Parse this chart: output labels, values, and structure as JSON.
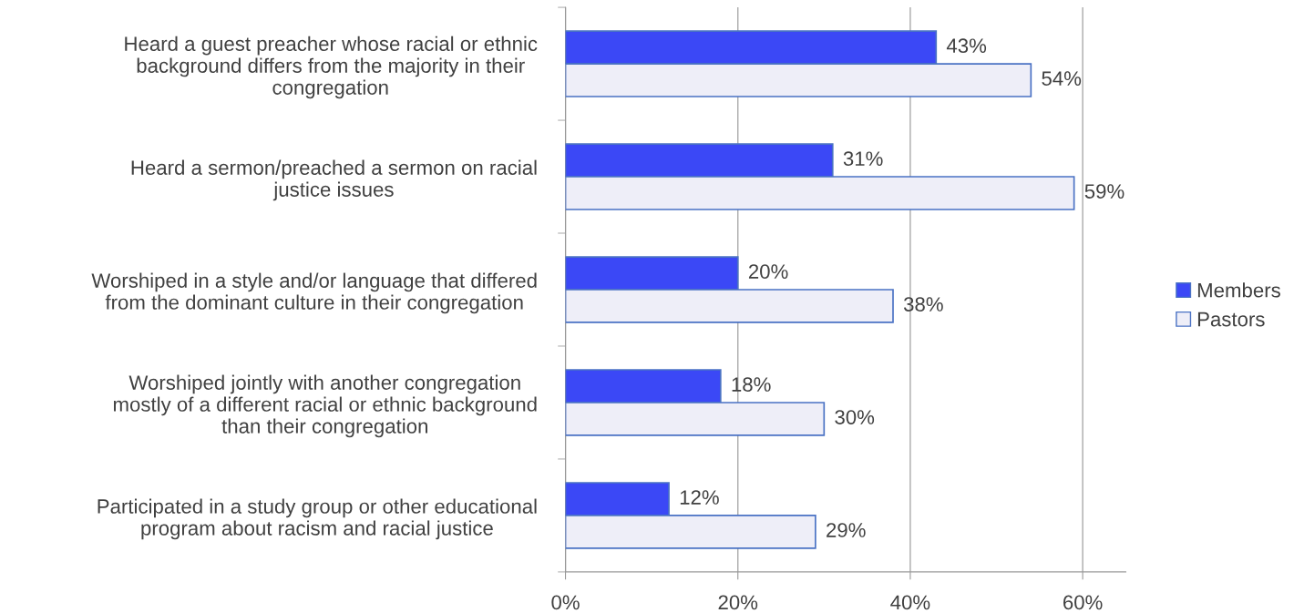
{
  "chart_data": {
    "type": "bar",
    "orientation": "horizontal",
    "categories": [
      "Heard a guest preacher whose racial or ethnic\nbackground differs from the majority in their\ncongregation",
      "Heard a sermon/preached a sermon on racial\njustice issues",
      "Worshiped in a style and/or language that differed\nfrom the dominant culture in their congregation",
      "Worshiped jointly with another congregation\nmostly of a different racial or ethnic background\nthan their congregation",
      "Participated in a study group or other educational\nprogram about racism and racial justice"
    ],
    "series": [
      {
        "name": "Members",
        "color": "#3b48f6",
        "values": [
          43,
          31,
          20,
          18,
          12
        ],
        "value_labels": [
          "43%",
          "31%",
          "20%",
          "18%",
          "12%"
        ]
      },
      {
        "name": "Pastors",
        "color": "#eeeef8",
        "values": [
          54,
          59,
          38,
          30,
          29
        ],
        "value_labels": [
          "54%",
          "59%",
          "38%",
          "30%",
          "29%"
        ]
      }
    ],
    "xlim": [
      0,
      65
    ],
    "xticks": [
      {
        "value": 0,
        "label": "0%"
      },
      {
        "value": 20,
        "label": "20%"
      },
      {
        "value": 40,
        "label": "40%"
      },
      {
        "value": 60,
        "label": "60%"
      }
    ],
    "grid": "x",
    "legend": "right"
  }
}
